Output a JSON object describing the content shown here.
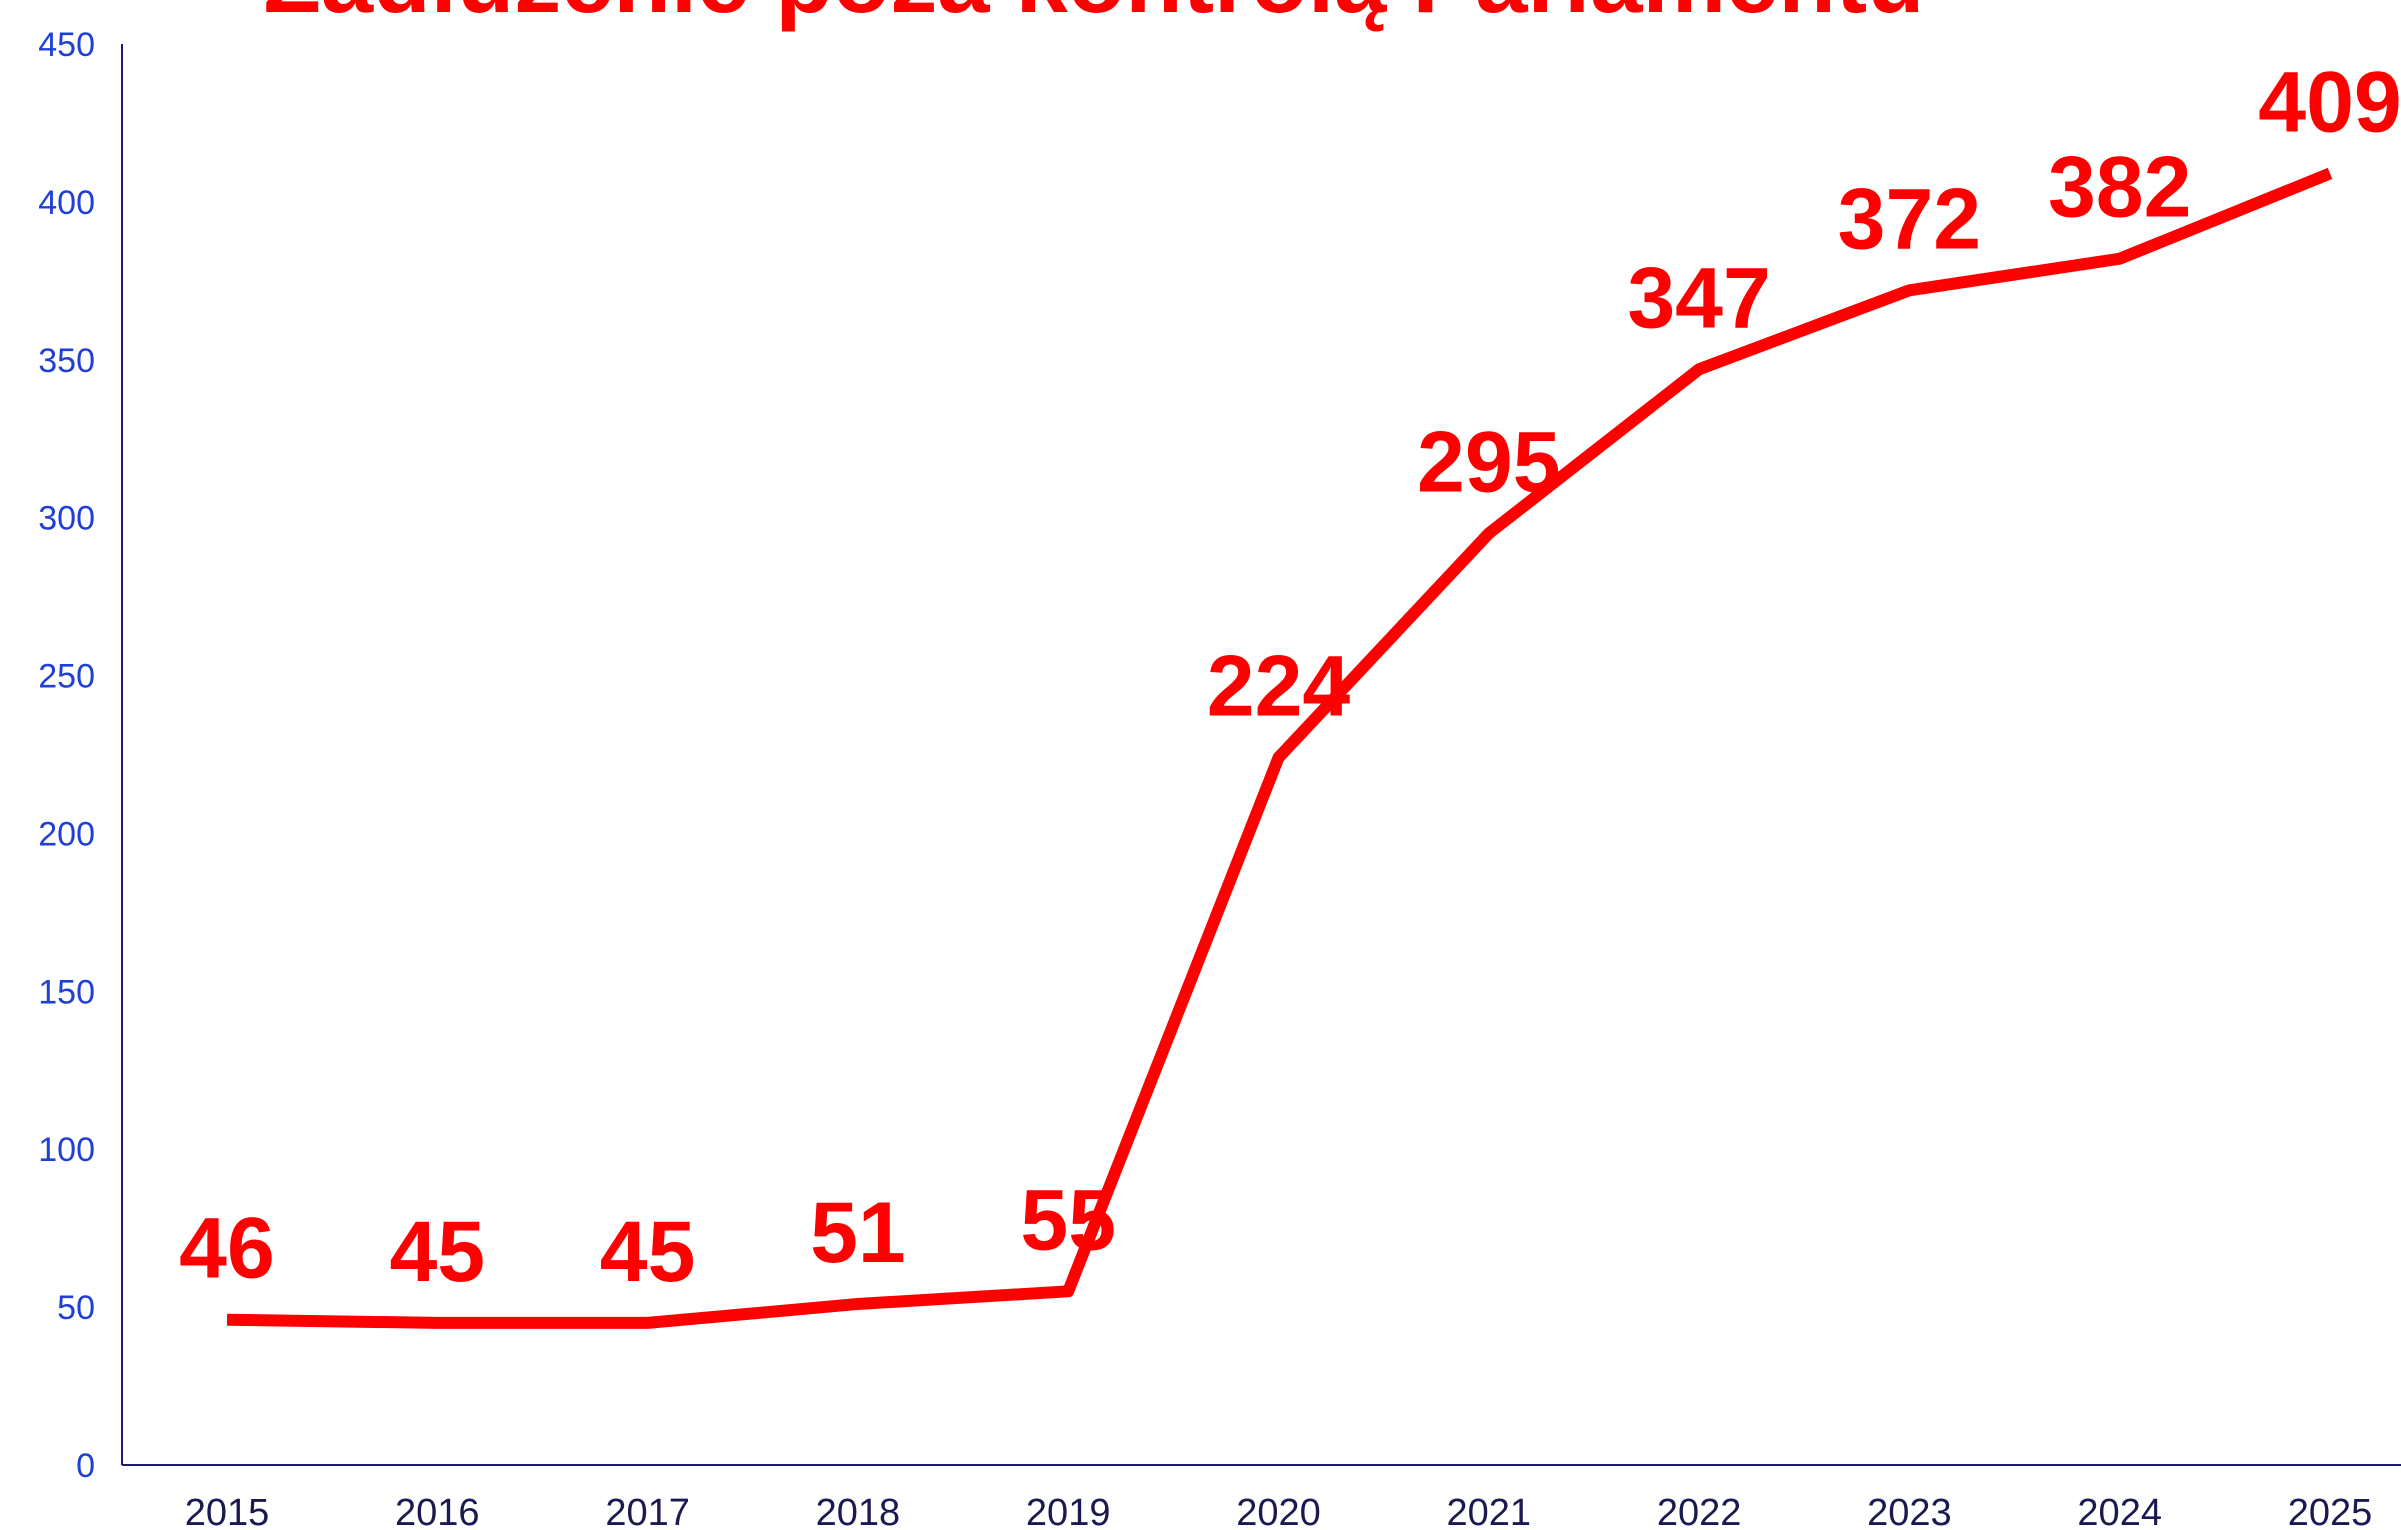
{
  "chart_data": {
    "type": "line",
    "title": "Zadłużenie poza kontrolą Parlamentu",
    "categories": [
      "2015",
      "2016",
      "2017",
      "2018",
      "2019",
      "2020",
      "2021",
      "2022",
      "2023",
      "2024",
      "2025"
    ],
    "values": [
      46,
      45,
      45,
      51,
      55,
      224,
      295,
      347,
      372,
      382,
      409
    ],
    "color": "#ff0000",
    "ylim": [
      0,
      450
    ],
    "yticks": [
      0,
      50,
      100,
      150,
      200,
      250,
      300,
      350,
      400,
      450
    ],
    "grid": false
  }
}
